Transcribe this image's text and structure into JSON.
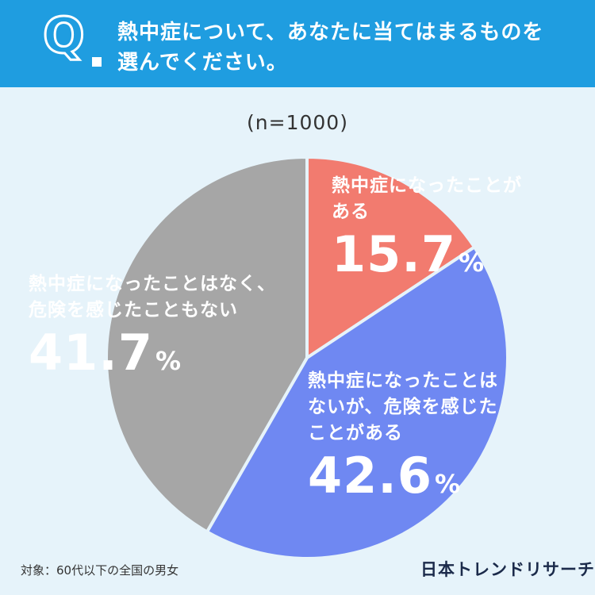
{
  "header": {
    "q_mark": "Q",
    "question_line1": "熱中症について、あなたに当てはまるものを",
    "question_line2": "選んでください。"
  },
  "chart_data": {
    "type": "pie",
    "sample_size": "(n=1000)",
    "series": [
      {
        "name": "熱中症になったことがある",
        "label_lines": [
          "熱中症になったことが",
          "ある"
        ],
        "value": 15.7,
        "value_text": "15.7",
        "color": "#f27b6f"
      },
      {
        "name": "熱中症になったことはないが、危険を感じたことがある",
        "label_lines": [
          "熱中症になったことは",
          "ないが、危険を感じた",
          "ことがある"
        ],
        "value": 42.6,
        "value_text": "42.6",
        "color": "#6f88f2"
      },
      {
        "name": "熱中症になったことはなく、危険を感じたこともない",
        "label_lines": [
          "熱中症になったことはなく、",
          "危険を感じたこともない"
        ],
        "value": 41.7,
        "value_text": "41.7",
        "color": "#a6a6a6"
      }
    ],
    "unit": "%"
  },
  "footer": {
    "note": "対象：60代以下の全国の男女",
    "brand": "日本トレンドリサーチ"
  }
}
